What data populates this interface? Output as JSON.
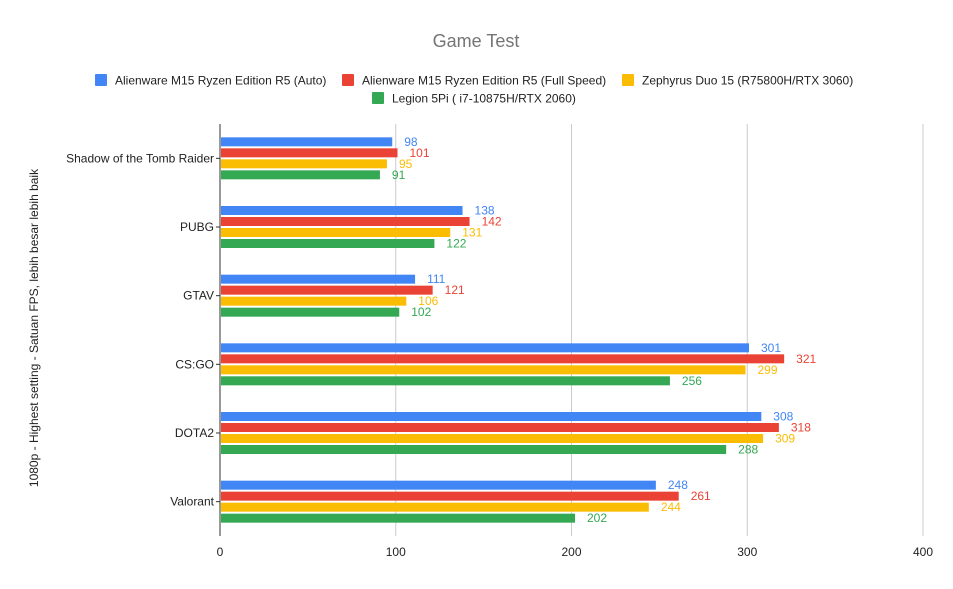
{
  "chart_data": {
    "type": "bar",
    "orientation": "horizontal",
    "title": "Game Test",
    "ylabel": "1080p - Highest setting - Satuan FPS, lebih besar lebih baik",
    "xlabel": "",
    "xlim": [
      0,
      400
    ],
    "x_ticks": [
      0,
      100,
      200,
      300,
      400
    ],
    "x_tick_labels": [
      "0",
      "100",
      "200",
      "300",
      "400"
    ],
    "grid": "vertical",
    "legend_position": "top",
    "categories": [
      "Shadow of the Tomb Raider",
      "PUBG",
      "GTAV",
      "CS:GO",
      "DOTA2",
      "Valorant"
    ],
    "series": [
      {
        "name": "Alienware M15 Ryzen Edition R5 (Auto)",
        "color": "#4285f4",
        "values": [
          98,
          138,
          111,
          301,
          308,
          248
        ]
      },
      {
        "name": "Alienware M15 Ryzen Edition R5 (Full Speed)",
        "color": "#ea4335",
        "values": [
          101,
          142,
          121,
          321,
          318,
          261
        ]
      },
      {
        "name": "Zephyrus Duo 15 (R75800H/RTX 3060)",
        "color": "#fbbc04",
        "values": [
          95,
          131,
          106,
          299,
          309,
          244
        ]
      },
      {
        "name": "Legion 5Pi ( i7-10875H/RTX 2060)",
        "color": "#34a853",
        "values": [
          91,
          122,
          102,
          256,
          288,
          202
        ]
      }
    ]
  },
  "colors": {
    "gridline": "#cccccc",
    "axis": "#333333"
  }
}
